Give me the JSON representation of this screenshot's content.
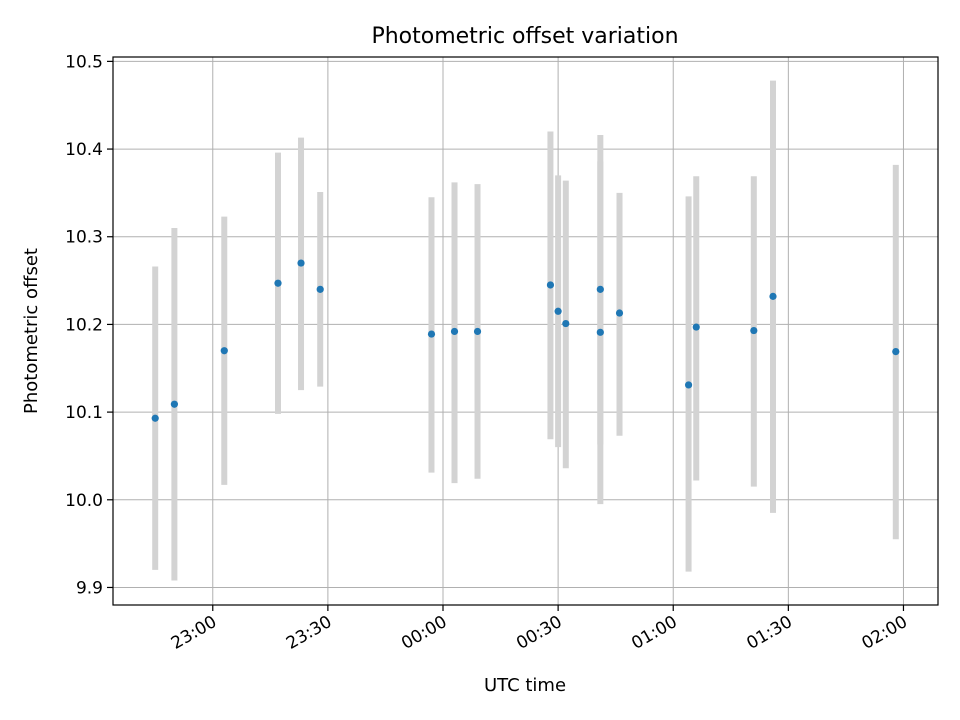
{
  "chart_data": {
    "type": "scatter",
    "title": "Photometric offset variation",
    "xlabel": "UTC time",
    "ylabel": "Photometric offset",
    "x_unit": "minutes",
    "xlim": [
      "22:34",
      "02:09"
    ],
    "ylim": [
      9.88,
      10.505
    ],
    "grid": true,
    "x_ticks": [
      "23:00",
      "23:30",
      "00:00",
      "00:30",
      "01:00",
      "01:30",
      "02:00"
    ],
    "y_ticks": [
      "9.9",
      "10.0",
      "10.1",
      "10.2",
      "10.3",
      "10.4",
      "10.5"
    ],
    "colors": {
      "point": "#1f77b4",
      "errorbar": "#d3d3d3",
      "grid": "#b0b0b0"
    },
    "points": [
      {
        "x": "22:45",
        "y": 10.093,
        "y_low": 9.92,
        "y_high": 10.266
      },
      {
        "x": "22:50",
        "y": 10.109,
        "y_low": 9.908,
        "y_high": 10.31
      },
      {
        "x": "23:03",
        "y": 10.17,
        "y_low": 10.017,
        "y_high": 10.323
      },
      {
        "x": "23:17",
        "y": 10.247,
        "y_low": 10.098,
        "y_high": 10.396
      },
      {
        "x": "23:23",
        "y": 10.27,
        "y_low": 10.125,
        "y_high": 10.413
      },
      {
        "x": "23:28",
        "y": 10.24,
        "y_low": 10.129,
        "y_high": 10.351
      },
      {
        "x": "23:57",
        "y": 10.189,
        "y_low": 10.031,
        "y_high": 10.345
      },
      {
        "x": "00:03",
        "y": 10.192,
        "y_low": 10.019,
        "y_high": 10.362
      },
      {
        "x": "00:09",
        "y": 10.192,
        "y_low": 10.024,
        "y_high": 10.36
      },
      {
        "x": "00:28",
        "y": 10.245,
        "y_low": 10.069,
        "y_high": 10.42
      },
      {
        "x": "00:30",
        "y": 10.215,
        "y_low": 10.06,
        "y_high": 10.37
      },
      {
        "x": "00:32",
        "y": 10.201,
        "y_low": 10.036,
        "y_high": 10.364
      },
      {
        "x": "00:41",
        "y": 10.191,
        "y_low": 9.995,
        "y_high": 10.386
      },
      {
        "x": "00:41",
        "y": 10.24,
        "y_low": 10.063,
        "y_high": 10.416
      },
      {
        "x": "00:46",
        "y": 10.213,
        "y_low": 10.073,
        "y_high": 10.35
      },
      {
        "x": "01:04",
        "y": 10.131,
        "y_low": 9.918,
        "y_high": 10.346
      },
      {
        "x": "01:06",
        "y": 10.197,
        "y_low": 10.022,
        "y_high": 10.369
      },
      {
        "x": "01:21",
        "y": 10.193,
        "y_low": 10.015,
        "y_high": 10.369
      },
      {
        "x": "01:26",
        "y": 10.232,
        "y_low": 9.985,
        "y_high": 10.478
      },
      {
        "x": "01:58",
        "y": 10.169,
        "y_low": 9.955,
        "y_high": 10.382
      }
    ]
  }
}
